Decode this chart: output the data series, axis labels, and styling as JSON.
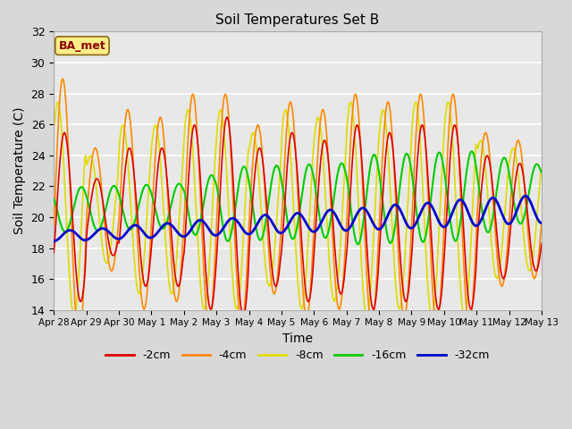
{
  "title": "Soil Temperatures Set B",
  "xlabel": "Time",
  "ylabel": "Soil Temperature (C)",
  "ylim": [
    14,
    32
  ],
  "yticks": [
    14,
    16,
    18,
    20,
    22,
    24,
    26,
    28,
    30,
    32
  ],
  "fig_bg_color": "#d8d8d8",
  "plot_bg_color": "#e8e8e8",
  "annotation_text": "BA_met",
  "annotation_box_color": "#ffee88",
  "annotation_text_color": "#8b0000",
  "colors": {
    "-2cm": "#dd0000",
    "-4cm": "#ff8800",
    "-8cm": "#dddd00",
    "-16cm": "#00cc00",
    "-32cm": "#0000cc"
  },
  "lw": {
    "-2cm": 1.2,
    "-4cm": 1.2,
    "-8cm": 1.2,
    "-16cm": 1.5,
    "-32cm": 2.0
  },
  "date_labels": [
    "Apr 28",
    "Apr 29",
    "Apr 30",
    "May 1",
    "May 2",
    "May 3",
    "May 4",
    "May 5",
    "May 6",
    "May 7",
    "May 8",
    "May 9",
    "May 10",
    "May 11",
    "May 12",
    "May 13"
  ]
}
